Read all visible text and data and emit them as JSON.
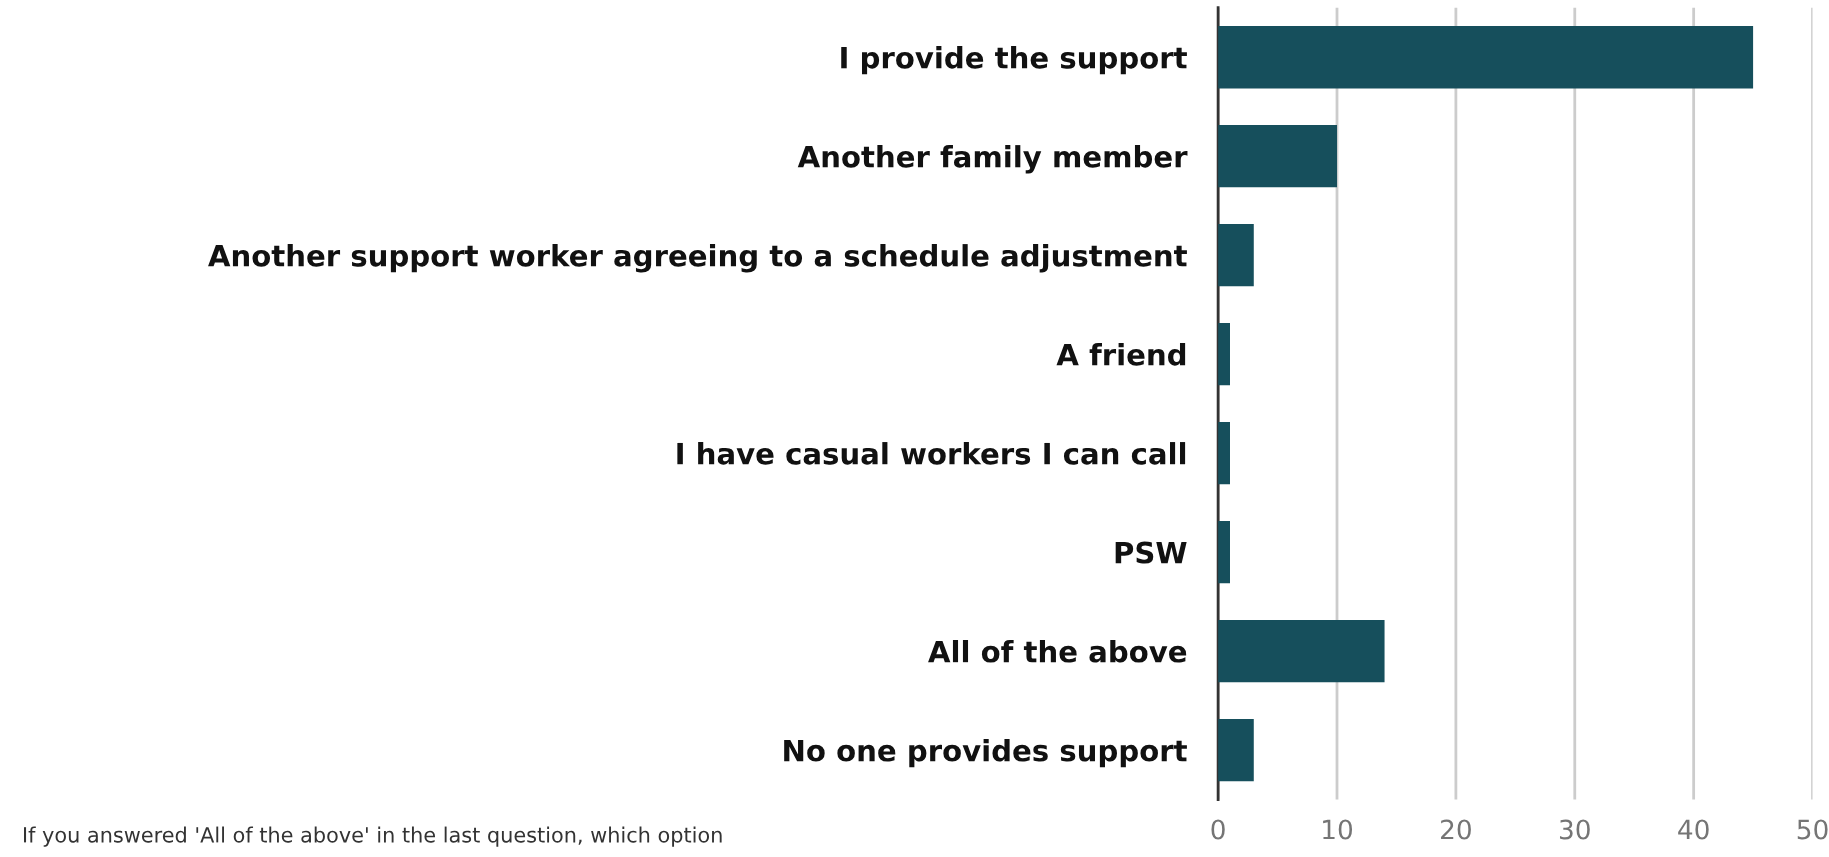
{
  "chart_data": {
    "type": "bar",
    "orientation": "horizontal",
    "categories": [
      "I provide the support",
      "Another family member",
      "Another support worker agreeing to a schedule adjustment",
      "A friend",
      "I have casual workers I can call",
      "PSW",
      "All of the above",
      "No one provides support"
    ],
    "values": [
      45,
      10,
      3,
      1,
      1,
      1,
      14,
      3
    ],
    "color": "#164f5c",
    "xlim": [
      0,
      50
    ],
    "xticks": [
      0,
      10,
      20,
      30,
      40,
      50
    ],
    "grid": "x",
    "legend": false,
    "annotations": [
      "If you answered 'All of the above' in the last question, which option"
    ]
  }
}
